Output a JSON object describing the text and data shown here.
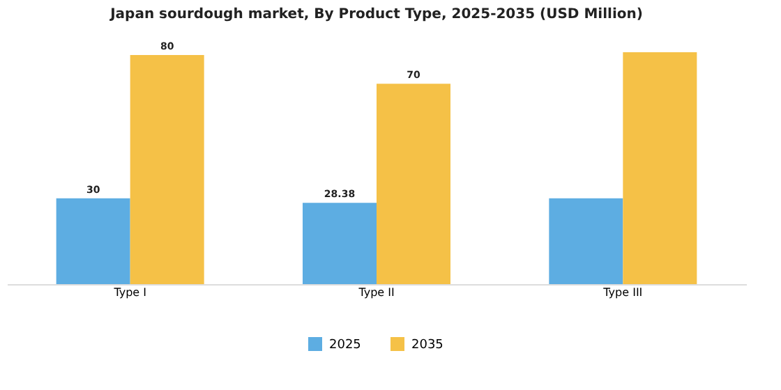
{
  "chart_data": {
    "type": "bar",
    "title": "Japan sourdough market, By Product Type, 2025-2035 (USD Million)",
    "categories": [
      "Type I",
      "Type II",
      "Type III"
    ],
    "series": [
      {
        "name": "2025",
        "color": "#5dade2",
        "values": [
          30,
          28.38,
          30
        ],
        "value_labels": [
          "30",
          "28.38",
          null
        ]
      },
      {
        "name": "2035",
        "color": "#f5c147",
        "values": [
          80,
          70,
          81
        ],
        "value_labels": [
          "80",
          "70",
          null
        ]
      }
    ],
    "legend": "bottom"
  }
}
